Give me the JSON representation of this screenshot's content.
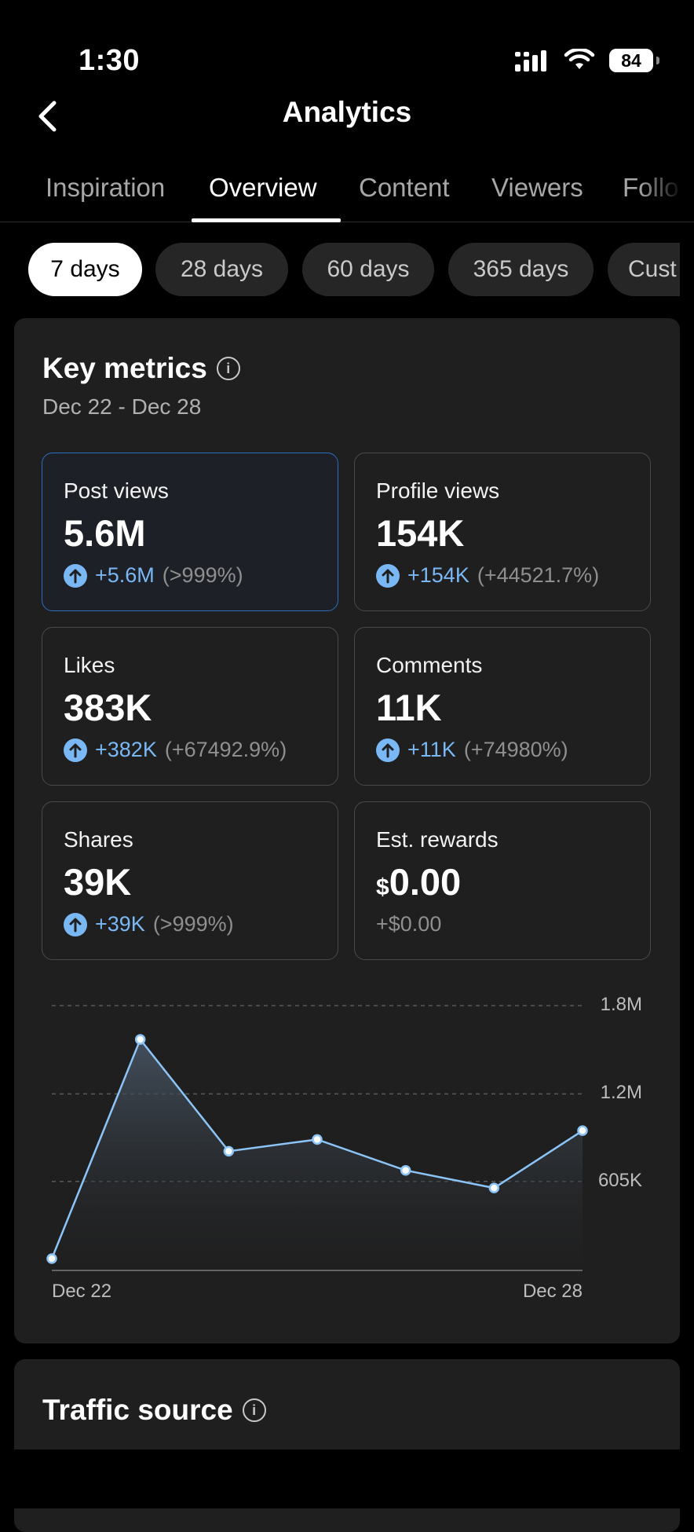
{
  "status_bar": {
    "time": "1:30",
    "battery": "84"
  },
  "header": {
    "title": "Analytics"
  },
  "tabs": [
    {
      "label": "Inspiration"
    },
    {
      "label": "Overview"
    },
    {
      "label": "Content"
    },
    {
      "label": "Viewers"
    },
    {
      "label": "Follo"
    }
  ],
  "periods": [
    {
      "label": "7 days"
    },
    {
      "label": "28 days"
    },
    {
      "label": "60 days"
    },
    {
      "label": "365 days"
    },
    {
      "label": "Cust"
    }
  ],
  "key_metrics": {
    "title": "Key metrics",
    "date_range": "Dec 22 - Dec 28",
    "items": [
      {
        "label": "Post views",
        "value": "5.6M",
        "delta": "+5.6M",
        "pct": "(>999%)"
      },
      {
        "label": "Profile views",
        "value": "154K",
        "delta": "+154K",
        "pct": "(+44521.7%)"
      },
      {
        "label": "Likes",
        "value": "383K",
        "delta": "+382K",
        "pct": "(+67492.9%)"
      },
      {
        "label": "Comments",
        "value": "11K",
        "delta": "+11K",
        "pct": "(+74980%)"
      },
      {
        "label": "Shares",
        "value": "39K",
        "delta": "+39K",
        "pct": "(>999%)"
      },
      {
        "label": "Est. rewards",
        "currency": "$",
        "value": "0.00",
        "change": "+$0.00"
      }
    ]
  },
  "chart_data": {
    "type": "area",
    "x": [
      "Dec 22",
      "Dec 23",
      "Dec 24",
      "Dec 25",
      "Dec 26",
      "Dec 27",
      "Dec 28"
    ],
    "x_tick_labels": [
      "Dec 22",
      "Dec 28"
    ],
    "y_tick_labels": [
      "1.8M",
      "1.2M",
      "605K"
    ],
    "y_ticks": [
      1800000,
      1200000,
      605000
    ],
    "ylim": [
      0,
      1800000
    ],
    "values": [
      80000,
      1570000,
      810000,
      890000,
      680000,
      560000,
      950000
    ],
    "line_color": "#8cc4f7",
    "grid": true
  },
  "traffic_source": {
    "title": "Traffic source"
  }
}
